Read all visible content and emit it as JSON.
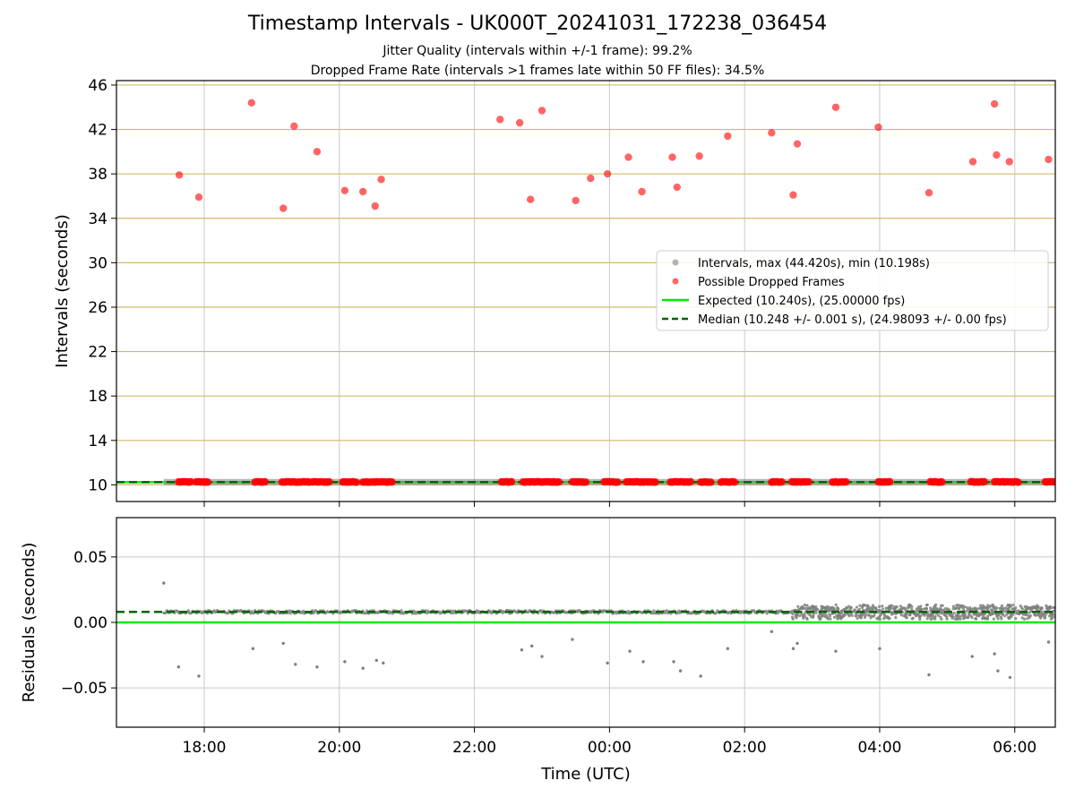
{
  "figure": {
    "title": "Timestamp Intervals - UK000T_20241031_172238_036454",
    "subtitle_jitter": "Jitter Quality (intervals within +/-1 frame): 99.2%",
    "subtitle_dropped": "Dropped Frame Rate (intervals >1 frames late within 50 FF files): 34.5%"
  },
  "colors": {
    "interval_points": "#808080",
    "dropped_points": "#ff0000",
    "expected_line": "#00ee00",
    "median_line": "#006400",
    "hgrid_top": "#d4b96a",
    "grid": "#c8c8c8"
  },
  "chart_data": [
    {
      "type": "scatter",
      "panel": "intervals",
      "xlabel": "",
      "ylabel": "Intervals (seconds)",
      "xlim_hours": [
        16.7,
        30.6
      ],
      "ylim": [
        8.5,
        46.4
      ],
      "yticks": [
        10,
        14,
        18,
        22,
        26,
        30,
        34,
        38,
        42,
        46
      ],
      "xticks": [
        {
          "h": 18,
          "label": "18:00"
        },
        {
          "h": 20,
          "label": "20:00"
        },
        {
          "h": 22,
          "label": "22:00"
        },
        {
          "h": 24,
          "label": "00:00"
        },
        {
          "h": 26,
          "label": "02:00"
        },
        {
          "h": 28,
          "label": "04:00"
        },
        {
          "h": 30,
          "label": "06:00"
        }
      ],
      "grid": true,
      "legend_position": "center-right",
      "legend": [
        {
          "kind": "gray-dot",
          "label": "Intervals, max (44.420s), min (10.198s)"
        },
        {
          "kind": "red-dot",
          "label": "Possible Dropped Frames"
        },
        {
          "kind": "solid-green",
          "label": "Expected (10.240s), (25.00000 fps)"
        },
        {
          "kind": "dashed-darkgreen",
          "label": "Median (10.248 +/- 0.001 s), (24.98093 +/- 0.00 fps)"
        }
      ],
      "expected_value": 10.24,
      "median_value": 10.248,
      "interval_range_hours": [
        17.4,
        30.6
      ],
      "dropped_high": [
        [
          17.63,
          37.9
        ],
        [
          17.92,
          35.9
        ],
        [
          18.7,
          44.4
        ],
        [
          19.17,
          34.9
        ],
        [
          19.33,
          42.3
        ],
        [
          19.67,
          40.0
        ],
        [
          20.08,
          36.5
        ],
        [
          20.35,
          36.4
        ],
        [
          20.53,
          35.1
        ],
        [
          20.62,
          37.5
        ],
        [
          22.38,
          42.9
        ],
        [
          22.67,
          42.6
        ],
        [
          22.83,
          35.7
        ],
        [
          23.0,
          43.7
        ],
        [
          23.5,
          35.6
        ],
        [
          23.72,
          37.6
        ],
        [
          23.97,
          38.0
        ],
        [
          24.28,
          39.5
        ],
        [
          24.48,
          36.4
        ],
        [
          24.93,
          39.5
        ],
        [
          25.0,
          36.8
        ],
        [
          25.33,
          39.6
        ],
        [
          25.75,
          41.4
        ],
        [
          26.4,
          41.7
        ],
        [
          26.72,
          36.1
        ],
        [
          26.78,
          40.7
        ],
        [
          27.35,
          44.0
        ],
        [
          27.98,
          42.2
        ],
        [
          28.73,
          36.3
        ],
        [
          29.38,
          39.1
        ],
        [
          29.7,
          44.3
        ],
        [
          29.73,
          39.7
        ],
        [
          29.92,
          39.1
        ],
        [
          30.5,
          39.3
        ]
      ],
      "dropped_low_ranges": [
        [
          17.62,
          17.8
        ],
        [
          17.88,
          18.05
        ],
        [
          18.75,
          18.9
        ],
        [
          19.15,
          19.55
        ],
        [
          19.6,
          19.85
        ],
        [
          20.05,
          20.25
        ],
        [
          20.35,
          20.78
        ],
        [
          22.4,
          22.55
        ],
        [
          22.72,
          23.25
        ],
        [
          23.45,
          23.65
        ],
        [
          23.92,
          24.12
        ],
        [
          24.25,
          24.68
        ],
        [
          24.9,
          25.2
        ],
        [
          25.35,
          25.5
        ],
        [
          25.65,
          25.85
        ],
        [
          26.4,
          26.55
        ],
        [
          26.7,
          26.95
        ],
        [
          27.3,
          27.5
        ],
        [
          27.98,
          28.15
        ],
        [
          28.75,
          28.92
        ],
        [
          29.35,
          29.55
        ],
        [
          29.7,
          30.05
        ],
        [
          30.45,
          30.6
        ]
      ]
    },
    {
      "type": "scatter",
      "panel": "residuals",
      "xlabel": "Time (UTC)",
      "ylabel": "Residuals (seconds)",
      "xlim_hours": [
        16.7,
        30.6
      ],
      "ylim": [
        -0.08,
        0.08
      ],
      "yticks": [
        {
          "v": 0.05,
          "label": "0.05"
        },
        {
          "v": 0.0,
          "label": "0.00"
        },
        {
          "v": -0.05,
          "label": "−0.05"
        }
      ],
      "xticks": [
        {
          "h": 18,
          "label": "18:00"
        },
        {
          "h": 20,
          "label": "20:00"
        },
        {
          "h": 22,
          "label": "22:00"
        },
        {
          "h": 24,
          "label": "00:00"
        },
        {
          "h": 26,
          "label": "02:00"
        },
        {
          "h": 28,
          "label": "04:00"
        },
        {
          "h": 30,
          "label": "06:00"
        }
      ],
      "grid": true,
      "expected_residual": 0.0,
      "median_residual": 0.008,
      "outliers": [
        [
          17.4,
          0.03
        ],
        [
          17.62,
          -0.034
        ],
        [
          17.92,
          -0.041
        ],
        [
          18.72,
          -0.02
        ],
        [
          19.17,
          -0.016
        ],
        [
          19.35,
          -0.032
        ],
        [
          19.67,
          -0.034
        ],
        [
          20.08,
          -0.03
        ],
        [
          20.35,
          -0.035
        ],
        [
          20.55,
          -0.029
        ],
        [
          20.65,
          -0.031
        ],
        [
          22.7,
          -0.021
        ],
        [
          22.85,
          -0.018
        ],
        [
          23.0,
          -0.026
        ],
        [
          23.45,
          -0.013
        ],
        [
          23.97,
          -0.031
        ],
        [
          24.3,
          -0.022
        ],
        [
          24.5,
          -0.03
        ],
        [
          24.95,
          -0.03
        ],
        [
          25.05,
          -0.037
        ],
        [
          25.35,
          -0.041
        ],
        [
          25.75,
          -0.02
        ],
        [
          26.4,
          -0.007
        ],
        [
          26.72,
          -0.02
        ],
        [
          26.78,
          -0.016
        ],
        [
          27.35,
          -0.022
        ],
        [
          28.0,
          -0.02
        ],
        [
          28.73,
          -0.04
        ],
        [
          29.37,
          -0.026
        ],
        [
          29.7,
          -0.024
        ],
        [
          29.75,
          -0.037
        ],
        [
          29.93,
          -0.042
        ],
        [
          30.5,
          -0.015
        ]
      ]
    }
  ]
}
